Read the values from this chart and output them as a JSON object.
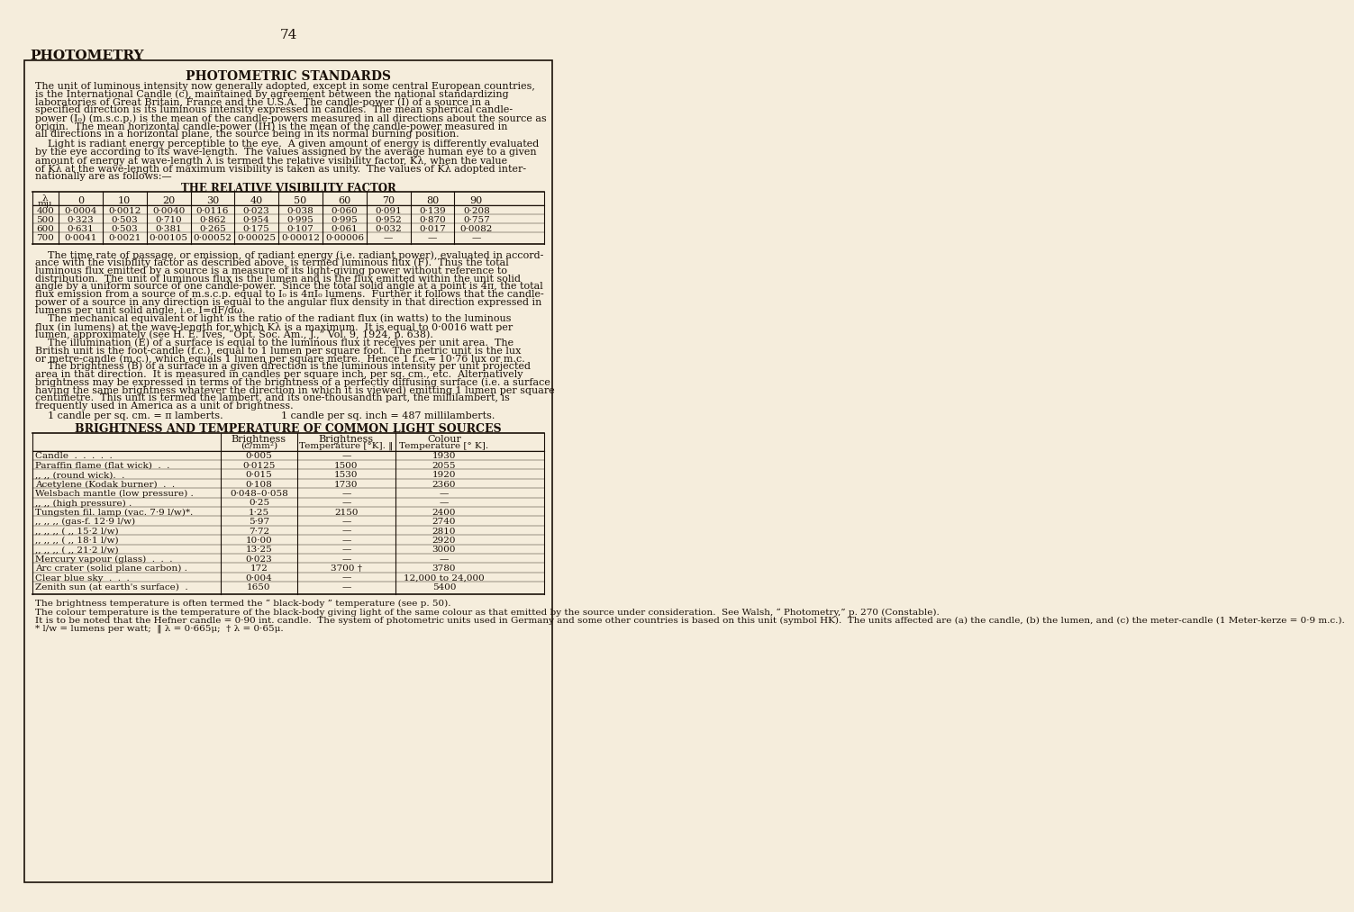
{
  "bg_color": "#f5eddc",
  "text_color": "#1a1008",
  "page_number": "74",
  "section_title": "PHOTOMETRY",
  "box_title": "PHOTOMETRIC STANDARDS",
  "table1_title": "THE RELATIVE VISIBILITY FACTOR",
  "table1_headers": [
    "λ\nmμ",
    "0",
    "10",
    "20",
    "30",
    "40",
    "50",
    "60",
    "70",
    "80",
    "90"
  ],
  "table1_rows": [
    [
      "400",
      "0·0004",
      "0·0012",
      "0·0040",
      "0·0116",
      "0·023",
      "0·038",
      "0·060",
      "0·091",
      "0·139",
      "0·208"
    ],
    [
      "500",
      "0·323",
      "0·503",
      "0·710",
      "0·862",
      "0·954",
      "0·995",
      "0·995",
      "0·952",
      "0·870",
      "0·757"
    ],
    [
      "600",
      "0·631",
      "0·503",
      "0·381",
      "0·265",
      "0·175",
      "0·107",
      "0·061",
      "0·032",
      "0·017",
      "0·0082"
    ],
    [
      "700",
      "0·0041",
      "0·0021",
      "0·00105",
      "0·00052",
      "0·00025",
      "0·00012",
      "0·00006",
      "—",
      "—",
      "—"
    ]
  ],
  "table2_title": "BRIGHTNESS AND TEMPERATURE OF COMMON LIGHT SOURCES",
  "table2_col_headers": [
    "",
    "Brightness\n(c/mm²)",
    "Brightness\nTemperature [°K]. ‖",
    "Colour\nTemperature [° K]."
  ],
  "table2_rows": [
    [
      "Candle  .  .  .  .  .",
      "0·005",
      "—",
      "1930"
    ],
    [
      "Paraffin flame (flat wick)  .  .",
      "0·0125",
      "1500",
      "2055"
    ],
    [
      ",, ,, (round wick).  .",
      "0·015",
      "1530",
      "1920"
    ],
    [
      "Acetylene (Kodak burner)  .  .",
      "0·108",
      "1730",
      "2360"
    ],
    [
      "Welsbach mantle (low pressure) .",
      "0·048–0·058",
      "—",
      "—"
    ],
    [
      ",, ,, (high pressure) .",
      "0·25",
      "—",
      "—"
    ],
    [
      "Tungsten fil. lamp (vac. 7·9 l/w)*.",
      "1·25",
      "2150",
      "2400"
    ],
    [
      ",, ,, ,, (gas-f. 12·9 l/w)",
      "5·97",
      "—",
      "2740"
    ],
    [
      ",, ,, ,, ( ,, 15·2 l/w)",
      "7·72",
      "—",
      "2810"
    ],
    [
      ",, ,, ,, ( ,, 18·1 l/w)",
      "10·00",
      "—",
      "2920"
    ],
    [
      ",, ,, ,, ( ,, 21·2 l/w)",
      "13·25",
      "—",
      "3000"
    ],
    [
      "Mercury vapour (glass)  .  .  .",
      "0·023",
      "—",
      "—"
    ],
    [
      "Arc crater (solid plane carbon) .",
      "172",
      "3700 †",
      "3780"
    ],
    [
      "Clear blue sky  .  .  .",
      "0·004",
      "—",
      "12,000 to 24,000"
    ],
    [
      "Zenith sun (at earth's surface)  .",
      "1650",
      "—",
      "5400"
    ]
  ],
  "footnote1": "The brightness temperature is often termed the “ black-body ” temperature (see p. 50).",
  "footnote2": "The colour temperature is the temperature of the black-body giving light of the same colour as that emitted by the source under consideration.  See Walsh, “ Photometry,” p. 270 (Constable).",
  "footnote3": "It is to be noted that the Hefner candle = 0·90 int. candle.  The system of photometric units used in Germany and some other countries is based on this unit (symbol HK).  The units affected are (a) the candle, (b) the lumen, and (c) the meter-candle (1 Meter-kerze = 0·9 m.c.).",
  "footnote4": "* l/w = lumens per watt;  ‖ λ = 0·665μ;  † λ = 0·65μ."
}
